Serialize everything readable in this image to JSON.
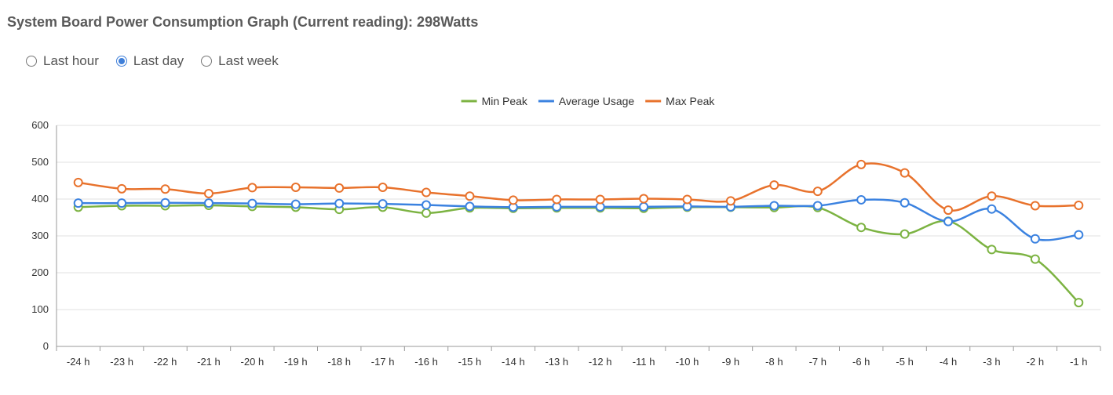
{
  "header": {
    "title": "System Board Power Consumption Graph (Current reading): 298Watts"
  },
  "time_ranges": [
    {
      "label": "Last hour",
      "selected": false
    },
    {
      "label": "Last day",
      "selected": true
    },
    {
      "label": "Last week",
      "selected": false
    }
  ],
  "colors": {
    "min_peak": "#7cb342",
    "average_usage": "#3b82e0",
    "max_peak": "#e8722c",
    "grid": "#e0e0e0",
    "axis": "#999999"
  },
  "chart_data": {
    "type": "line",
    "title": "",
    "xlabel": "",
    "ylabel": "",
    "ylim": [
      0,
      600
    ],
    "yticks": [
      "0",
      "100",
      "200",
      "300",
      "400",
      "500",
      "600"
    ],
    "categories": [
      "-24 h",
      "-23 h",
      "-22 h",
      "-21 h",
      "-20 h",
      "-19 h",
      "-18 h",
      "-17 h",
      "-16 h",
      "-15 h",
      "-14 h",
      "-13 h",
      "-12 h",
      "-11 h",
      "-10 h",
      "-9 h",
      "-8 h",
      "-7 h",
      "-6 h",
      "-5 h",
      "-4 h",
      "-3 h",
      "-2 h",
      "-1 h"
    ],
    "series": [
      {
        "name": "Min Peak",
        "color_key": "min_peak",
        "values": [
          378,
          382,
          382,
          383,
          380,
          378,
          372,
          378,
          362,
          376,
          375,
          376,
          376,
          375,
          378,
          378,
          377,
          377,
          323,
          305,
          340,
          263,
          237,
          119
        ]
      },
      {
        "name": "Average Usage",
        "color_key": "average_usage",
        "values": [
          389,
          389,
          390,
          389,
          388,
          386,
          388,
          387,
          384,
          380,
          378,
          379,
          379,
          379,
          380,
          379,
          382,
          382,
          398,
          390,
          339,
          373,
          292,
          303
        ]
      },
      {
        "name": "Max Peak",
        "color_key": "max_peak",
        "values": [
          445,
          428,
          427,
          415,
          431,
          432,
          430,
          432,
          418,
          408,
          397,
          399,
          399,
          401,
          399,
          395,
          438,
          421,
          494,
          471,
          370,
          408,
          382,
          383
        ]
      }
    ],
    "legend_position": "top-center",
    "grid": true
  }
}
